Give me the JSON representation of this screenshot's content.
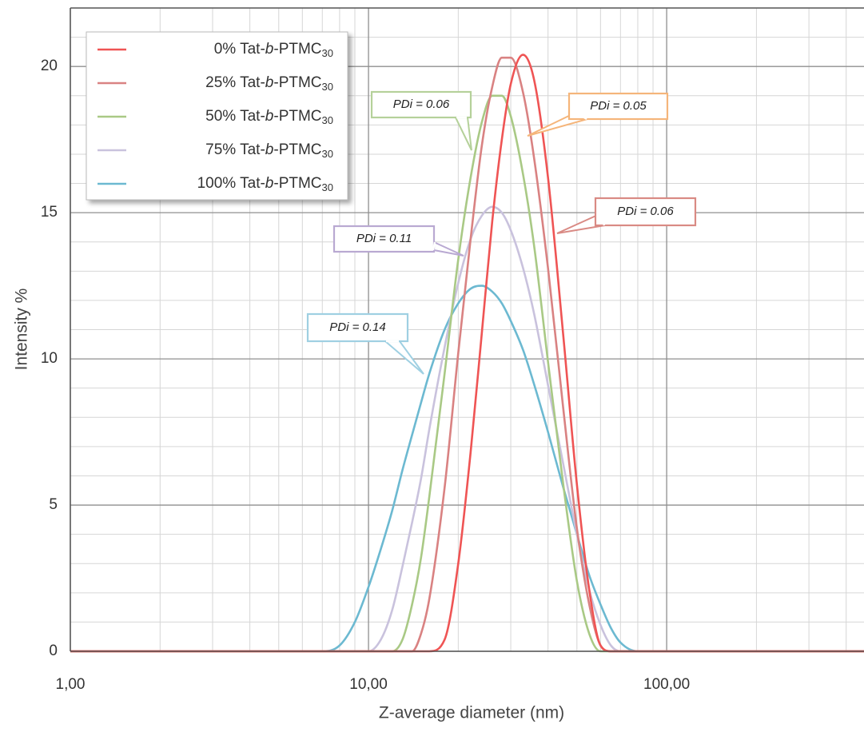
{
  "chart_data": {
    "type": "line",
    "x_label": "Z-average diameter (nm)",
    "y_label": "Intensity %",
    "xscale": "log",
    "xlim": [
      1,
      459
    ],
    "ylim": [
      0,
      22
    ],
    "xticks": [
      {
        "value": 1,
        "label": "1,00"
      },
      {
        "value": 10,
        "label": "10,00"
      },
      {
        "value": 100,
        "label": "100,00"
      }
    ],
    "yticks": [
      0,
      5,
      10,
      15,
      20
    ],
    "xticks_minor": [
      2,
      3,
      4,
      5,
      6,
      7,
      8,
      9,
      20,
      30,
      40,
      50,
      60,
      70,
      80,
      90,
      200,
      300,
      400
    ],
    "yticks_minor": [
      1,
      2,
      3,
      4,
      6,
      7,
      8,
      9,
      11,
      12,
      13,
      14,
      16,
      17,
      18,
      19,
      21
    ],
    "grid": true,
    "legend": "upper left",
    "x": [
      1,
      7,
      8,
      9,
      10,
      11,
      12,
      13,
      14,
      15,
      16,
      18,
      20,
      22,
      24,
      26,
      28,
      30,
      33,
      36,
      40,
      45,
      50,
      55,
      60,
      65,
      70,
      80,
      100,
      459
    ],
    "series": [
      {
        "name": "0% Tat-b-PTMC30",
        "color": "#ef5454",
        "values": [
          0,
          0,
          0,
          0,
          0,
          0,
          0,
          0,
          0,
          0,
          0,
          0.4,
          3.0,
          6.8,
          10.9,
          14.7,
          17.5,
          19.4,
          20.4,
          19.5,
          16.2,
          10.8,
          5.7,
          2.1,
          0.2,
          0,
          0,
          0,
          0,
          0
        ]
      },
      {
        "name": "25% Tat-b-PTMC30",
        "color": "#d98282",
        "values": [
          0,
          0,
          0,
          0,
          0,
          0,
          0,
          0,
          0,
          0.6,
          1.8,
          5.6,
          10.2,
          14.1,
          17.3,
          19.3,
          20.3,
          20.3,
          19.1,
          16.8,
          13.1,
          8.3,
          4.2,
          1.6,
          0.2,
          0,
          0,
          0,
          0,
          0
        ]
      },
      {
        "name": "50% Tat-b-PTMC30",
        "color": "#a9c985",
        "values": [
          0,
          0,
          0,
          0,
          0,
          0,
          0,
          0.4,
          1.6,
          3.2,
          5.3,
          9.5,
          13.4,
          16.2,
          18.1,
          19.0,
          19.0,
          18.3,
          16.3,
          13.8,
          9.9,
          5.7,
          2.4,
          0.6,
          0,
          0,
          0,
          0,
          0,
          0
        ]
      },
      {
        "name": "75% Tat-b-PTMC30",
        "color": "#c9c2dd",
        "values": [
          0,
          0,
          0,
          0,
          0,
          0.4,
          1.4,
          2.9,
          4.4,
          5.9,
          7.6,
          10.4,
          12.6,
          14.1,
          14.9,
          15.2,
          15.0,
          14.4,
          13.1,
          11.5,
          9.1,
          6.4,
          4.0,
          2.1,
          0.9,
          0.2,
          0,
          0,
          0,
          0
        ]
      },
      {
        "name": "100% Tat-b-PTMC30",
        "color": "#6cb9d1",
        "values": [
          0,
          0,
          0.2,
          1.0,
          2.2,
          3.5,
          4.8,
          6.2,
          7.4,
          8.5,
          9.5,
          11.0,
          11.9,
          12.4,
          12.5,
          12.3,
          11.9,
          11.3,
          10.3,
          9.1,
          7.5,
          5.6,
          4.0,
          2.6,
          1.6,
          0.8,
          0.3,
          0,
          0,
          0
        ]
      }
    ],
    "annotations": [
      {
        "text": "PDi = 0.06",
        "color": "#b5d19a"
      },
      {
        "text": "PDi = 0.05",
        "color": "#f5b57a"
      },
      {
        "text": "PDi = 0.06",
        "color": "#d98a84"
      },
      {
        "text": "PDi = 0.11",
        "color": "#b9a9d2"
      },
      {
        "text": "PDi = 0.14",
        "color": "#9fd0e2"
      }
    ]
  }
}
